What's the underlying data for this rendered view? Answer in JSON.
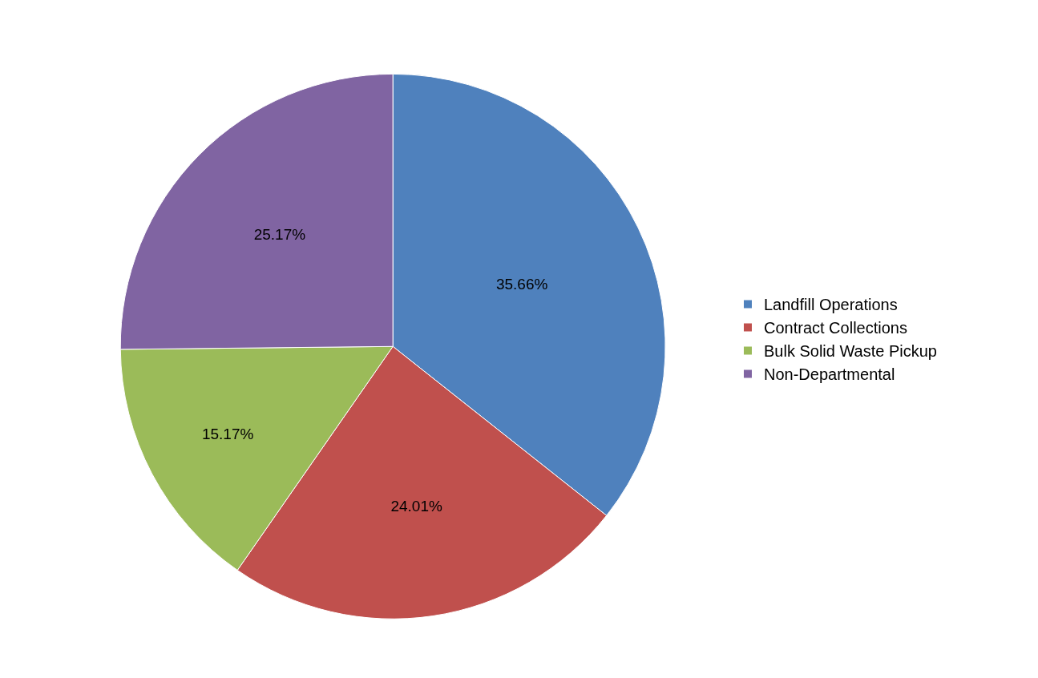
{
  "chart_data": {
    "type": "pie",
    "categories": [
      "Landfill Operations",
      "Contract Collections",
      "Bulk Solid Waste Pickup",
      "Non-Departmental"
    ],
    "values": [
      35.66,
      24.01,
      15.17,
      25.17
    ],
    "value_labels": [
      "35.66%",
      "24.01%",
      "15.17%",
      "25.17%"
    ],
    "colors": [
      "#4f81bd",
      "#c0504d",
      "#9bbb59",
      "#8064a2"
    ],
    "legend": "right"
  }
}
